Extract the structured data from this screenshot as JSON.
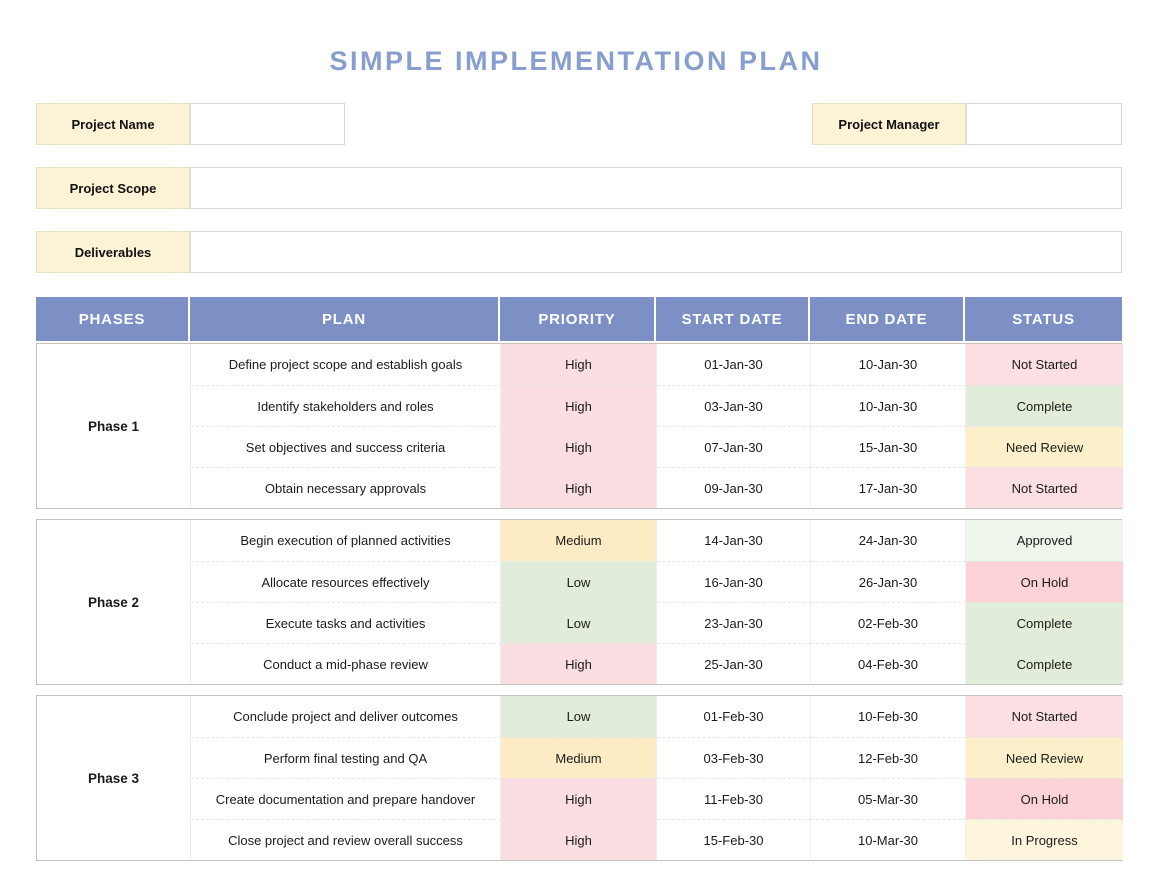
{
  "page": {
    "title": "SIMPLE IMPLEMENTATION PLAN"
  },
  "fields": {
    "project_name": {
      "label": "Project Name",
      "value": ""
    },
    "project_manager": {
      "label": "Project Manager",
      "value": ""
    },
    "project_scope": {
      "label": "Project Scope",
      "value": ""
    },
    "deliverables": {
      "label": "Deliverables",
      "value": ""
    }
  },
  "table": {
    "headers": [
      "PHASES",
      "PLAN",
      "PRIORITY",
      "START DATE",
      "END DATE",
      "STATUS"
    ],
    "phases": [
      {
        "name": "Phase 1",
        "rows": [
          {
            "plan": "Define project scope and establish goals",
            "priority": "High",
            "start": "01-Jan-30",
            "end": "10-Jan-30",
            "status": "Not Started"
          },
          {
            "plan": "Identify stakeholders and roles",
            "priority": "High",
            "start": "03-Jan-30",
            "end": "10-Jan-30",
            "status": "Complete"
          },
          {
            "plan": "Set objectives and success criteria",
            "priority": "High",
            "start": "07-Jan-30",
            "end": "15-Jan-30",
            "status": "Need Review"
          },
          {
            "plan": "Obtain necessary approvals",
            "priority": "High",
            "start": "09-Jan-30",
            "end": "17-Jan-30",
            "status": "Not Started"
          }
        ]
      },
      {
        "name": "Phase 2",
        "rows": [
          {
            "plan": "Begin execution of planned activities",
            "priority": "Medium",
            "start": "14-Jan-30",
            "end": "24-Jan-30",
            "status": "Approved"
          },
          {
            "plan": "Allocate resources effectively",
            "priority": "Low",
            "start": "16-Jan-30",
            "end": "26-Jan-30",
            "status": "On Hold"
          },
          {
            "plan": "Execute tasks and activities",
            "priority": "Low",
            "start": "23-Jan-30",
            "end": "02-Feb-30",
            "status": "Complete"
          },
          {
            "plan": "Conduct a mid-phase review",
            "priority": "High",
            "start": "25-Jan-30",
            "end": "04-Feb-30",
            "status": "Complete"
          }
        ]
      },
      {
        "name": "Phase 3",
        "rows": [
          {
            "plan": "Conclude project and deliver outcomes",
            "priority": "Low",
            "start": "01-Feb-30",
            "end": "10-Feb-30",
            "status": "Not Started"
          },
          {
            "plan": "Perform final testing and QA",
            "priority": "Medium",
            "start": "03-Feb-30",
            "end": "12-Feb-30",
            "status": "Need Review"
          },
          {
            "plan": "Create documentation and prepare handover",
            "priority": "High",
            "start": "11-Feb-30",
            "end": "05-Mar-30",
            "status": "On Hold"
          },
          {
            "plan": "Close project and review overall success",
            "priority": "High",
            "start": "15-Feb-30",
            "end": "10-Mar-30",
            "status": "In Progress"
          }
        ]
      }
    ]
  },
  "colors": {
    "title_text": "#879ecf",
    "table_header_bg": "#7d90c6",
    "table_header_text": "#ffffff",
    "field_label_bg": "#fcf3d6",
    "priority_high": "#fbdee2",
    "priority_medium": "#fdebc6",
    "priority_low": "#e1edda",
    "status_not_started": "#fbdfe3",
    "status_complete": "#e1edda",
    "status_need_review": "#fcefca",
    "status_approved": "#eef5eb",
    "status_on_hold": "#fbd3d7",
    "status_in_progress": "#fdf5dc"
  }
}
